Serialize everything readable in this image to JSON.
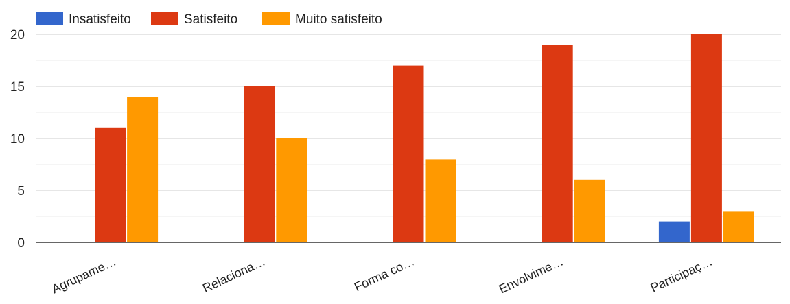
{
  "chart_data": {
    "type": "bar",
    "categories": [
      "Agrupame…",
      "Relaciona…",
      "Forma co…",
      "Envolvime…",
      "Participaç…"
    ],
    "series": [
      {
        "name": "Insatisfeito",
        "color": "#3366cc",
        "values": [
          0,
          0,
          0,
          0,
          2
        ]
      },
      {
        "name": "Satisfeito",
        "color": "#dc3912",
        "values": [
          11,
          15,
          17,
          19,
          20
        ]
      },
      {
        "name": "Muito satisfeito",
        "color": "#ff9900",
        "values": [
          14,
          10,
          8,
          6,
          3
        ]
      }
    ],
    "y_ticks": [
      "0",
      "5",
      "10",
      "15",
      "20"
    ],
    "ylim": [
      0,
      22
    ],
    "grid": true,
    "legend": "top-left"
  }
}
